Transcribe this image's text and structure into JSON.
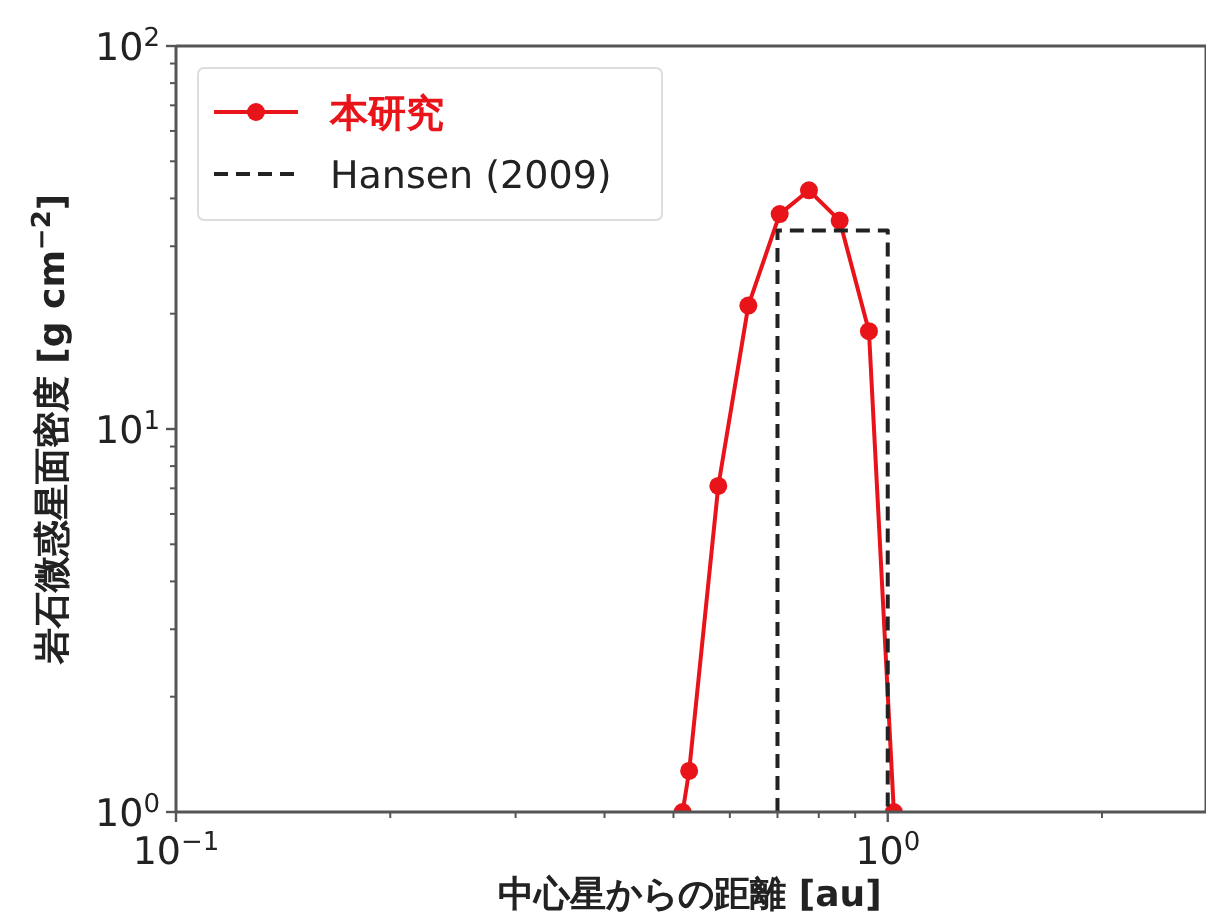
{
  "chart_data": {
    "type": "line",
    "xlabel": "中心星からの距離 [au]",
    "ylabel": "岩石微惑星面密度 [g cm$^{−2}$]",
    "log": "xy",
    "xlim": [
      0.1,
      2.8
    ],
    "ylim": [
      1,
      100
    ],
    "xticks": [
      {
        "value": 0.1,
        "label": "10$^{−1}$"
      },
      {
        "value": 1,
        "label": "10$^{0}$"
      }
    ],
    "yticks": [
      {
        "value": 1,
        "label": "10$^{0}$"
      },
      {
        "value": 10,
        "label": "10$^{1}$"
      },
      {
        "value": 100,
        "label": "10$^{2}$"
      }
    ],
    "grid": false,
    "legend": "top left",
    "series": [
      {
        "name": "本研究",
        "color": "#e8141a",
        "marker": "circle",
        "line_style": "solid",
        "x": [
          0.515,
          0.526,
          0.578,
          0.637,
          0.705,
          0.775,
          0.856,
          0.941,
          1.02
        ],
        "values": [
          1,
          1.28,
          7.1,
          21,
          36.4,
          42,
          35,
          18,
          1
        ]
      },
      {
        "name": "Hansen (2009)",
        "color": "#222222",
        "marker": "none",
        "line_style": "dashed",
        "x": [
          0.7,
          0.7,
          1.0,
          1.0
        ],
        "values": [
          1,
          33,
          33,
          1
        ]
      }
    ]
  }
}
